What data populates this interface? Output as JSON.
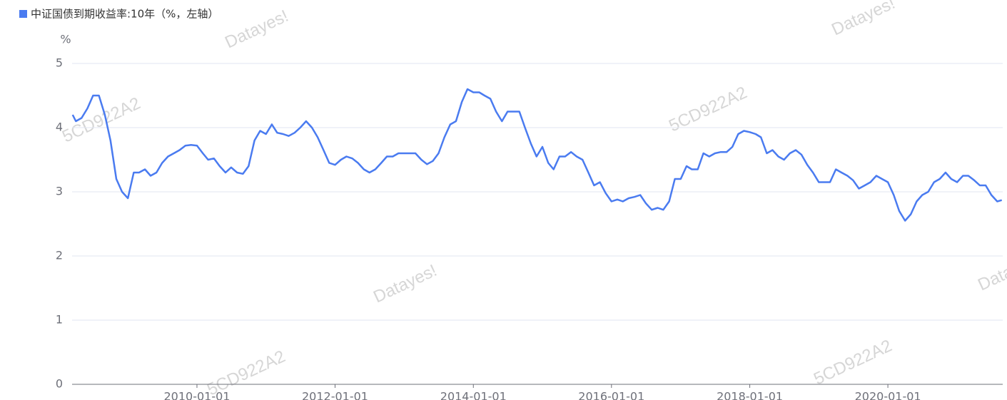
{
  "chart_data": {
    "type": "line",
    "y_unit": "%",
    "xlim": [
      "2008-03-12",
      "2021-08-30"
    ],
    "xticks": [
      "2010-01-01",
      "2012-01-01",
      "2014-01-01",
      "2016-01-01",
      "2018-01-01",
      "2020-01-01"
    ],
    "ylim": [
      0,
      5
    ],
    "yticks": [
      0,
      1,
      2,
      3,
      4,
      5
    ],
    "grid": true,
    "watermarks": [
      "Datayes!",
      "Datayes!",
      "Datayes!",
      "Datayes!",
      "5CD922A2",
      "5CD922A2",
      "5CD922A2",
      "5CD922A2"
    ],
    "x": [
      "2008-03-15",
      "2008-04-01",
      "2008-05-01",
      "2008-06-01",
      "2008-07-01",
      "2008-08-01",
      "2008-09-01",
      "2008-10-01",
      "2008-11-01",
      "2008-12-01",
      "2009-01-01",
      "2009-02-01",
      "2009-03-01",
      "2009-04-01",
      "2009-05-01",
      "2009-06-01",
      "2009-07-01",
      "2009-08-01",
      "2009-09-01",
      "2009-10-01",
      "2009-11-01",
      "2009-12-01",
      "2010-01-01",
      "2010-02-01",
      "2010-03-01",
      "2010-04-01",
      "2010-05-01",
      "2010-06-01",
      "2010-07-01",
      "2010-08-01",
      "2010-09-01",
      "2010-10-01",
      "2010-11-01",
      "2010-12-01",
      "2011-01-01",
      "2011-02-01",
      "2011-03-01",
      "2011-04-01",
      "2011-05-01",
      "2011-06-01",
      "2011-07-01",
      "2011-08-01",
      "2011-09-01",
      "2011-10-01",
      "2011-11-01",
      "2011-12-01",
      "2012-01-01",
      "2012-02-01",
      "2012-03-01",
      "2012-04-01",
      "2012-05-01",
      "2012-06-01",
      "2012-07-01",
      "2012-08-01",
      "2012-09-01",
      "2012-10-01",
      "2012-11-01",
      "2012-12-01",
      "2013-01-01",
      "2013-02-01",
      "2013-03-01",
      "2013-04-01",
      "2013-05-01",
      "2013-06-01",
      "2013-07-01",
      "2013-08-01",
      "2013-09-01",
      "2013-10-01",
      "2013-11-01",
      "2013-12-01",
      "2014-01-01",
      "2014-02-01",
      "2014-03-01",
      "2014-04-01",
      "2014-05-01",
      "2014-06-01",
      "2014-07-01",
      "2014-08-01",
      "2014-09-01",
      "2014-10-01",
      "2014-11-01",
      "2014-12-01",
      "2015-01-01",
      "2015-02-01",
      "2015-03-01",
      "2015-04-01",
      "2015-05-01",
      "2015-06-01",
      "2015-07-01",
      "2015-08-01",
      "2015-09-01",
      "2015-10-01",
      "2015-11-01",
      "2015-12-01",
      "2016-01-01",
      "2016-02-01",
      "2016-03-01",
      "2016-04-01",
      "2016-05-01",
      "2016-06-01",
      "2016-07-01",
      "2016-08-01",
      "2016-09-01",
      "2016-10-01",
      "2016-11-01",
      "2016-12-01",
      "2017-01-01",
      "2017-02-01",
      "2017-03-01",
      "2017-04-01",
      "2017-05-01",
      "2017-06-01",
      "2017-07-01",
      "2017-08-01",
      "2017-09-01",
      "2017-10-01",
      "2017-11-01",
      "2017-12-01",
      "2018-01-01",
      "2018-02-01",
      "2018-03-01",
      "2018-04-01",
      "2018-05-01",
      "2018-06-01",
      "2018-07-01",
      "2018-08-01",
      "2018-09-01",
      "2018-10-01",
      "2018-11-01",
      "2018-12-01",
      "2019-01-01",
      "2019-02-01",
      "2019-03-01",
      "2019-04-01",
      "2019-05-01",
      "2019-06-01",
      "2019-07-01",
      "2019-08-01",
      "2019-09-01",
      "2019-10-01",
      "2019-11-01",
      "2019-12-01",
      "2020-01-01",
      "2020-02-01",
      "2020-03-01",
      "2020-04-01",
      "2020-05-01",
      "2020-06-01",
      "2020-07-01",
      "2020-08-01",
      "2020-09-01",
      "2020-10-01",
      "2020-11-01",
      "2020-12-01",
      "2021-01-01",
      "2021-02-01",
      "2021-03-01",
      "2021-04-01",
      "2021-05-01",
      "2021-06-01",
      "2021-07-01",
      "2021-08-01",
      "2021-08-25"
    ],
    "series": [
      {
        "name": "中证国债到期收益率:10年（%，左轴）",
        "color": "#4a7bf0",
        "values": [
          4.2,
          4.1,
          4.15,
          4.3,
          4.5,
          4.5,
          4.2,
          3.8,
          3.2,
          3.0,
          2.9,
          3.3,
          3.3,
          3.35,
          3.25,
          3.3,
          3.45,
          3.55,
          3.6,
          3.65,
          3.72,
          3.73,
          3.72,
          3.6,
          3.5,
          3.52,
          3.4,
          3.3,
          3.38,
          3.3,
          3.28,
          3.4,
          3.8,
          3.95,
          3.9,
          4.05,
          3.92,
          3.9,
          3.87,
          3.92,
          4.0,
          4.1,
          4.0,
          3.85,
          3.65,
          3.45,
          3.42,
          3.5,
          3.55,
          3.52,
          3.45,
          3.35,
          3.3,
          3.35,
          3.45,
          3.55,
          3.55,
          3.6,
          3.6,
          3.6,
          3.6,
          3.5,
          3.43,
          3.48,
          3.6,
          3.85,
          4.05,
          4.1,
          4.4,
          4.6,
          4.55,
          4.55,
          4.5,
          4.45,
          4.25,
          4.1,
          4.25,
          4.25,
          4.25,
          4.0,
          3.75,
          3.55,
          3.7,
          3.45,
          3.35,
          3.55,
          3.55,
          3.62,
          3.55,
          3.5,
          3.3,
          3.1,
          3.15,
          2.98,
          2.85,
          2.88,
          2.85,
          2.9,
          2.92,
          2.95,
          2.82,
          2.72,
          2.75,
          2.72,
          2.85,
          3.2,
          3.2,
          3.4,
          3.35,
          3.35,
          3.6,
          3.55,
          3.6,
          3.62,
          3.62,
          3.7,
          3.9,
          3.95,
          3.93,
          3.9,
          3.85,
          3.6,
          3.65,
          3.55,
          3.5,
          3.6,
          3.65,
          3.58,
          3.42,
          3.3,
          3.15,
          3.15,
          3.15,
          3.35,
          3.3,
          3.25,
          3.18,
          3.05,
          3.1,
          3.15,
          3.25,
          3.2,
          3.15,
          2.95,
          2.7,
          2.55,
          2.65,
          2.85,
          2.95,
          3.0,
          3.15,
          3.2,
          3.3,
          3.2,
          3.15,
          3.25,
          3.25,
          3.18,
          3.1,
          3.1,
          2.95,
          2.85,
          2.87
        ]
      }
    ]
  }
}
